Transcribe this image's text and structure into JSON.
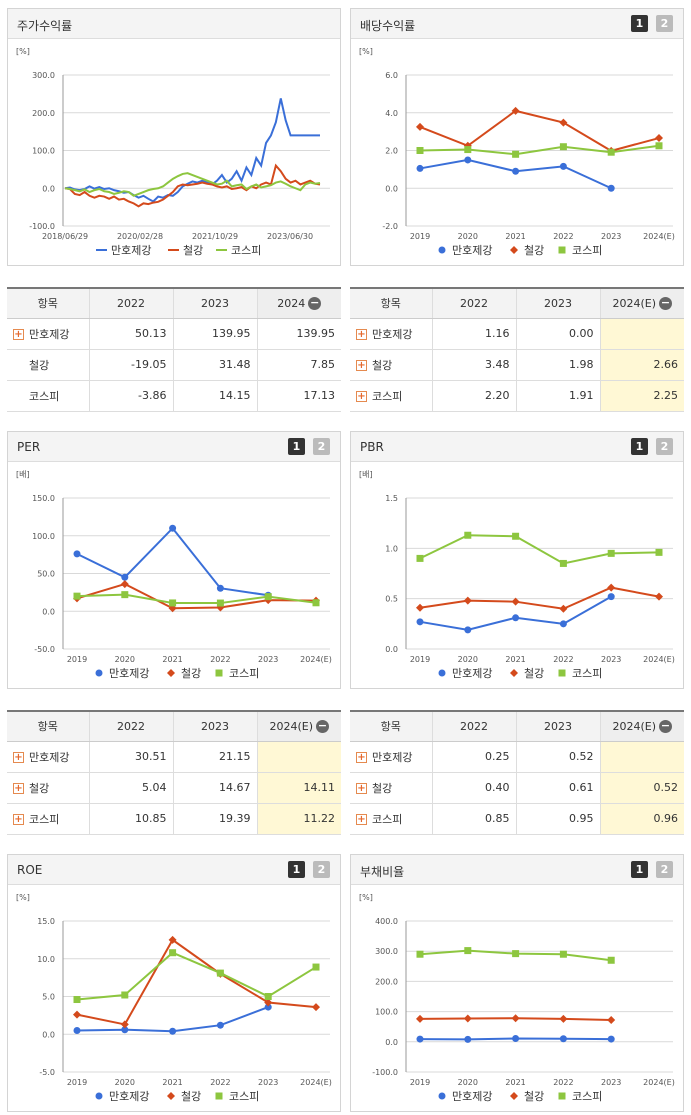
{
  "colors": {
    "series1": "#3a6fd8",
    "series2": "#d44a1c",
    "series3": "#8dc63f",
    "grid": "#d9d9d9",
    "axis": "#555"
  },
  "legend": [
    "만호제강",
    "철강",
    "코스피"
  ],
  "charts": {
    "stock": {
      "title": "주가수익률",
      "unit": "[%]",
      "buttons": [],
      "chart_data": {
        "type": "line",
        "ylim": [
          -100,
          300
        ],
        "yticks": [
          -100,
          0,
          100,
          200,
          300
        ],
        "yticklabels": [
          "-100.0",
          "0.0",
          "100.0",
          "200.0",
          "300.0"
        ],
        "xlabels": [
          "2018/06/29",
          "2020/02/28",
          "2021/10/29",
          "2023/06/30"
        ],
        "xlabel_pos": [
          0,
          20,
          40,
          60
        ],
        "xlim": [
          0,
          68
        ],
        "series": [
          {
            "name": "만호제강",
            "values": [
              0,
              2,
              -3,
              -5,
              -2,
              5,
              -1,
              3,
              -2,
              0,
              -5,
              -8,
              -12,
              -10,
              -18,
              -25,
              -20,
              -28,
              -35,
              -22,
              -25,
              -18,
              -20,
              -10,
              5,
              12,
              18,
              15,
              20,
              15,
              10,
              20,
              35,
              15,
              25,
              45,
              20,
              55,
              35,
              80,
              60,
              120,
              140,
              175,
              238,
              180,
              140,
              140,
              140,
              140,
              140,
              140,
              140
            ]
          },
          {
            "name": "철강",
            "values": [
              0,
              -2,
              -15,
              -18,
              -10,
              -20,
              -25,
              -20,
              -22,
              -28,
              -22,
              -30,
              -28,
              -35,
              -40,
              -48,
              -40,
              -42,
              -38,
              -36,
              -30,
              -20,
              -10,
              5,
              10,
              8,
              10,
              12,
              15,
              12,
              10,
              5,
              2,
              5,
              -2,
              0,
              3,
              -5,
              5,
              0,
              10,
              15,
              10,
              60,
              45,
              25,
              15,
              20,
              10,
              15,
              20,
              12,
              10
            ]
          },
          {
            "name": "코스피",
            "values": [
              0,
              -2,
              -5,
              -8,
              -3,
              -10,
              -5,
              -2,
              -8,
              -10,
              -15,
              -12,
              -8,
              -10,
              -20,
              -15,
              -10,
              -5,
              -2,
              0,
              5,
              15,
              25,
              32,
              38,
              40,
              35,
              30,
              25,
              20,
              15,
              10,
              12,
              20,
              5,
              8,
              10,
              -2,
              5,
              10,
              2,
              5,
              8,
              15,
              18,
              12,
              5,
              0,
              -5,
              10,
              15,
              12,
              14
            ]
          }
        ]
      }
    },
    "div": {
      "title": "배당수익률",
      "unit": "[%]",
      "buttons": [
        "1",
        "2"
      ],
      "chart_data": {
        "type": "line",
        "categories": [
          "2019",
          "2020",
          "2021",
          "2022",
          "2023",
          "2024(E)"
        ],
        "ylim": [
          -2,
          6
        ],
        "yticks": [
          -2,
          0,
          2,
          4,
          6
        ],
        "yticklabels": [
          "-2.0",
          "0.0",
          "2.0",
          "4.0",
          "6.0"
        ],
        "series": [
          {
            "name": "만호제강",
            "values": [
              1.05,
              1.5,
              0.9,
              1.16,
              0.0,
              null
            ]
          },
          {
            "name": "철강",
            "values": [
              3.25,
              2.25,
              4.1,
              3.48,
              1.98,
              2.66
            ]
          },
          {
            "name": "코스피",
            "values": [
              2.0,
              2.05,
              1.8,
              2.2,
              1.91,
              2.25
            ]
          }
        ]
      }
    },
    "per": {
      "title": "PER",
      "unit": "[배]",
      "buttons": [
        "1",
        "2"
      ],
      "chart_data": {
        "type": "line",
        "categories": [
          "2019",
          "2020",
          "2021",
          "2022",
          "2023",
          "2024(E)"
        ],
        "ylim": [
          -50,
          150
        ],
        "yticks": [
          -50,
          0,
          50,
          100,
          150
        ],
        "yticklabels": [
          "-50.0",
          "0.0",
          "50.0",
          "100.0",
          "150.0"
        ],
        "series": [
          {
            "name": "만호제강",
            "values": [
              76,
              45,
              110,
              30.51,
              21.15,
              null
            ]
          },
          {
            "name": "철강",
            "values": [
              17,
              36,
              4,
              5.04,
              14.67,
              14.11
            ]
          },
          {
            "name": "코스피",
            "values": [
              20,
              22,
              11,
              10.85,
              19.39,
              11.22
            ]
          }
        ]
      }
    },
    "pbr": {
      "title": "PBR",
      "unit": "[배]",
      "buttons": [
        "1",
        "2"
      ],
      "chart_data": {
        "type": "line",
        "categories": [
          "2019",
          "2020",
          "2021",
          "2022",
          "2023",
          "2024(E)"
        ],
        "ylim": [
          0,
          1.5
        ],
        "yticks": [
          0,
          0.5,
          1.0,
          1.5
        ],
        "yticklabels": [
          "0.0",
          "0.5",
          "1.0",
          "1.5"
        ],
        "series": [
          {
            "name": "만호제강",
            "values": [
              0.27,
              0.19,
              0.31,
              0.25,
              0.52,
              null
            ]
          },
          {
            "name": "철강",
            "values": [
              0.41,
              0.48,
              0.47,
              0.4,
              0.61,
              0.52
            ]
          },
          {
            "name": "코스피",
            "values": [
              0.9,
              1.13,
              1.12,
              0.85,
              0.95,
              0.96
            ]
          }
        ]
      }
    },
    "roe": {
      "title": "ROE",
      "unit": "[%]",
      "buttons": [
        "1",
        "2"
      ],
      "chart_data": {
        "type": "line",
        "categories": [
          "2019",
          "2020",
          "2021",
          "2022",
          "2023",
          "2024(E)"
        ],
        "ylim": [
          -5,
          15
        ],
        "yticks": [
          -5,
          0,
          5,
          10,
          15
        ],
        "yticklabels": [
          "-5.0",
          "0.0",
          "5.0",
          "10.0",
          "15.0"
        ],
        "series": [
          {
            "name": "만호제강",
            "values": [
              0.5,
              0.6,
              0.4,
              1.2,
              3.6,
              null
            ]
          },
          {
            "name": "철강",
            "values": [
              2.6,
              1.3,
              12.5,
              8.0,
              4.2,
              3.6
            ]
          },
          {
            "name": "코스피",
            "values": [
              4.6,
              5.2,
              10.8,
              8.1,
              5.0,
              8.9
            ]
          }
        ]
      }
    },
    "debt": {
      "title": "부채비율",
      "unit": "[%]",
      "buttons": [
        "1",
        "2"
      ],
      "chart_data": {
        "type": "line",
        "categories": [
          "2019",
          "2020",
          "2021",
          "2022",
          "2023",
          "2024(E)"
        ],
        "ylim": [
          -100,
          400
        ],
        "yticks": [
          -100,
          0,
          100,
          200,
          300,
          400
        ],
        "yticklabels": [
          "-100.0",
          "0.0",
          "100.0",
          "200.0",
          "300.0",
          "400.0"
        ],
        "series": [
          {
            "name": "만호제강",
            "values": [
              9,
              8,
              11,
              10,
              9,
              null
            ]
          },
          {
            "name": "철강",
            "values": [
              76,
              77,
              78,
              76,
              72,
              null
            ]
          },
          {
            "name": "코스피",
            "values": [
              290,
              302,
              292,
              290,
              270,
              null
            ]
          }
        ]
      }
    }
  },
  "tables": {
    "stock": {
      "headers": [
        "항목",
        "2022",
        "2023",
        "2024"
      ],
      "rows": [
        {
          "name": "만호제강",
          "plus": true,
          "values": [
            "50.13",
            "139.95",
            "139.95"
          ]
        },
        {
          "name": "철강",
          "plus": false,
          "values": [
            "-19.05",
            "31.48",
            "7.85"
          ]
        },
        {
          "name": "코스피",
          "plus": false,
          "values": [
            "-3.86",
            "14.15",
            "17.13"
          ]
        }
      ]
    },
    "div": {
      "headers": [
        "항목",
        "2022",
        "2023",
        "2024(E)"
      ],
      "rows": [
        {
          "name": "만호제강",
          "plus": true,
          "values": [
            "1.16",
            "0.00",
            ""
          ]
        },
        {
          "name": "철강",
          "plus": true,
          "values": [
            "3.48",
            "1.98",
            "2.66"
          ]
        },
        {
          "name": "코스피",
          "plus": true,
          "values": [
            "2.20",
            "1.91",
            "2.25"
          ]
        }
      ]
    },
    "per": {
      "headers": [
        "항목",
        "2022",
        "2023",
        "2024(E)"
      ],
      "rows": [
        {
          "name": "만호제강",
          "plus": true,
          "values": [
            "30.51",
            "21.15",
            ""
          ]
        },
        {
          "name": "철강",
          "plus": true,
          "values": [
            "5.04",
            "14.67",
            "14.11"
          ]
        },
        {
          "name": "코스피",
          "plus": true,
          "values": [
            "10.85",
            "19.39",
            "11.22"
          ]
        }
      ]
    },
    "pbr": {
      "headers": [
        "항목",
        "2022",
        "2023",
        "2024(E)"
      ],
      "rows": [
        {
          "name": "만호제강",
          "plus": true,
          "values": [
            "0.25",
            "0.52",
            ""
          ]
        },
        {
          "name": "철강",
          "plus": true,
          "values": [
            "0.40",
            "0.61",
            "0.52"
          ]
        },
        {
          "name": "코스피",
          "plus": true,
          "values": [
            "0.85",
            "0.95",
            "0.96"
          ]
        }
      ]
    }
  }
}
